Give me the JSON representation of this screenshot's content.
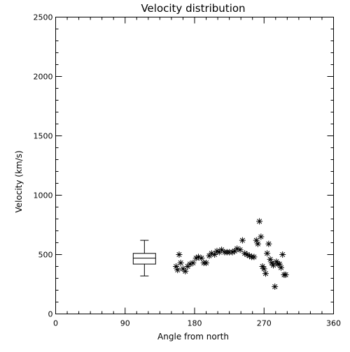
{
  "chart_data": {
    "type": "scatter",
    "title": "Velocity distribution",
    "xlabel": "Angle from north",
    "ylabel": "Velocity (km/s)",
    "xlim": [
      0,
      360
    ],
    "ylim": [
      0,
      2500
    ],
    "x_major_ticks": [
      0,
      90,
      180,
      270,
      360
    ],
    "x_minor_step": 15,
    "y_major_ticks": [
      0,
      500,
      1000,
      1500,
      2000,
      2500
    ],
    "y_minor_step": 100,
    "grid": false,
    "legend": "none",
    "points": [
      {
        "x": 156,
        "y": 400
      },
      {
        "x": 158,
        "y": 370
      },
      {
        "x": 160,
        "y": 500
      },
      {
        "x": 162,
        "y": 430
      },
      {
        "x": 165,
        "y": 380
      },
      {
        "x": 168,
        "y": 360
      },
      {
        "x": 171,
        "y": 400
      },
      {
        "x": 174,
        "y": 420
      },
      {
        "x": 178,
        "y": 430
      },
      {
        "x": 182,
        "y": 470
      },
      {
        "x": 185,
        "y": 480
      },
      {
        "x": 189,
        "y": 470
      },
      {
        "x": 192,
        "y": 430
      },
      {
        "x": 195,
        "y": 430
      },
      {
        "x": 199,
        "y": 490
      },
      {
        "x": 202,
        "y": 510
      },
      {
        "x": 206,
        "y": 500
      },
      {
        "x": 209,
        "y": 530
      },
      {
        "x": 212,
        "y": 520
      },
      {
        "x": 215,
        "y": 540
      },
      {
        "x": 219,
        "y": 520
      },
      {
        "x": 222,
        "y": 520
      },
      {
        "x": 225,
        "y": 520
      },
      {
        "x": 229,
        "y": 520
      },
      {
        "x": 232,
        "y": 530
      },
      {
        "x": 235,
        "y": 550
      },
      {
        "x": 239,
        "y": 540
      },
      {
        "x": 242,
        "y": 620
      },
      {
        "x": 245,
        "y": 510
      },
      {
        "x": 248,
        "y": 500
      },
      {
        "x": 251,
        "y": 490
      },
      {
        "x": 254,
        "y": 480
      },
      {
        "x": 257,
        "y": 480
      },
      {
        "x": 260,
        "y": 620
      },
      {
        "x": 262,
        "y": 590
      },
      {
        "x": 264,
        "y": 780
      },
      {
        "x": 266,
        "y": 650
      },
      {
        "x": 268,
        "y": 400
      },
      {
        "x": 270,
        "y": 380
      },
      {
        "x": 272,
        "y": 340
      },
      {
        "x": 274,
        "y": 510
      },
      {
        "x": 276,
        "y": 590
      },
      {
        "x": 278,
        "y": 460
      },
      {
        "x": 280,
        "y": 430
      },
      {
        "x": 282,
        "y": 410
      },
      {
        "x": 284,
        "y": 230
      },
      {
        "x": 286,
        "y": 440
      },
      {
        "x": 288,
        "y": 420
      },
      {
        "x": 290,
        "y": 420
      },
      {
        "x": 292,
        "y": 390
      },
      {
        "x": 294,
        "y": 500
      },
      {
        "x": 296,
        "y": 330
      },
      {
        "x": 298,
        "y": 330
      }
    ],
    "boxplot": {
      "x": 115,
      "whisker_low": 320,
      "q1": 420,
      "median": 470,
      "q3": 510,
      "whisker_high": 620
    }
  }
}
